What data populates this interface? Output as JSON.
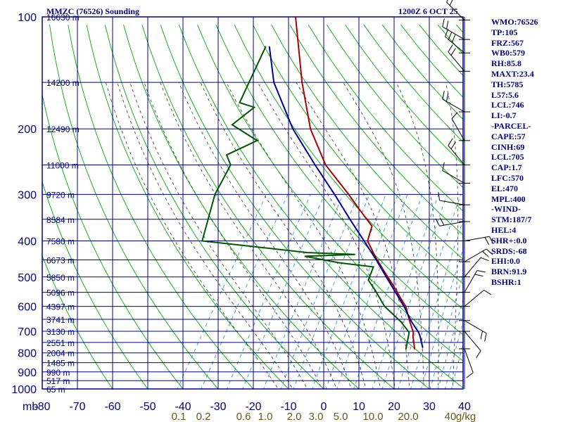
{
  "header": {
    "station": "MMZC (76526) Sounding",
    "time": "1200Z  6 OCT 25"
  },
  "stats": [
    "WMO:76526",
    "TP:105",
    "FRZ:567",
    "WB0:579",
    "RH:85.8",
    "MAXT:23.4",
    "TH:5785",
    "L57:5.6",
    "LCL:746",
    "LI:-0.7",
    "-PARCEL-",
    "CAPE:57",
    "CINH:69",
    "LCL:705",
    "CAP:1.7",
    "LFC:570",
    "EL:470",
    "MPL:400",
    "-WIND-",
    "STM:187/7",
    "HEL:4",
    "SHR+:0.0",
    "SRDS:-68",
    "EHI:0.0",
    "BRN:91.9",
    "BSHR:1"
  ],
  "colors": {
    "grid": "#000099",
    "dry_adiabat": "#00aa00",
    "moist_adiabat": "#333333",
    "mixing_ratio": "#2a9ad4",
    "temperature": "#aa0000",
    "parcel": "#000099",
    "dewpoint": "#005500",
    "axis_text": "#000080",
    "mixing_text": "#6b5a14"
  },
  "chart_data": {
    "type": "line",
    "chart_kind": "skew-T log-P sounding",
    "axis_mb_label": "mb",
    "pressure_axis": {
      "values": [
        100,
        200,
        300,
        400,
        500,
        600,
        700,
        800,
        900,
        1000
      ],
      "labels": [
        "100",
        "200",
        "300",
        "400",
        "500",
        "600",
        "700",
        "800",
        "900",
        "1000"
      ]
    },
    "temperature_axis": {
      "values": [
        -80,
        -70,
        -60,
        -50,
        -40,
        -30,
        -20,
        -10,
        0,
        10,
        20,
        30,
        40
      ],
      "labels": [
        "-80",
        "-70",
        "-60",
        "-50",
        "-40",
        "-30",
        "-20",
        "-10",
        "0",
        "10",
        "20",
        "30",
        "40"
      ]
    },
    "mixing_ratio_labels": [
      "0.1",
      "0.2",
      "0.6",
      "1.0",
      "2.0",
      "3.0",
      "5.0",
      "10.0",
      "20.0",
      "40",
      "g/kg"
    ],
    "height_labels": [
      {
        "p": 100,
        "text": "16630 m"
      },
      {
        "p": 150,
        "text": "14200 m"
      },
      {
        "p": 200,
        "text": "12490 m"
      },
      {
        "p": 250,
        "text": "11000 m"
      },
      {
        "p": 300,
        "text": "9720 m"
      },
      {
        "p": 350,
        "text": "8584 m"
      },
      {
        "p": 400,
        "text": "7580 m"
      },
      {
        "p": 450,
        "text": "6673 m"
      },
      {
        "p": 500,
        "text": "5850 m"
      },
      {
        "p": 550,
        "text": "5096 m"
      },
      {
        "p": 600,
        "text": "4397 m"
      },
      {
        "p": 650,
        "text": "3741 m"
      },
      {
        "p": 700,
        "text": "3130 m"
      },
      {
        "p": 750,
        "text": "2551 m"
      },
      {
        "p": 800,
        "text": "2004 m"
      },
      {
        "p": 850,
        "text": "1485 m"
      },
      {
        "p": 900,
        "text": "990 m"
      },
      {
        "p": 950,
        "text": "517 m"
      },
      {
        "p": 1000,
        "text": "65 m"
      }
    ],
    "series": [
      {
        "key": "temperature",
        "points": [
          [
            783,
            18.5
          ],
          [
            740,
            16.5
          ],
          [
            720,
            15.5
          ],
          [
            705,
            15.0
          ],
          [
            660,
            12.0
          ],
          [
            600,
            8.0
          ],
          [
            565,
            4.5
          ],
          [
            540,
            2.0
          ],
          [
            480,
            -5.0
          ],
          [
            440,
            -10.0
          ],
          [
            400,
            -15.0
          ],
          [
            365,
            -16.5
          ],
          [
            330,
            -23.0
          ],
          [
            300,
            -29.0
          ],
          [
            250,
            -41.0
          ],
          [
            200,
            -52.0
          ],
          [
            150,
            -63.0
          ],
          [
            100,
            -77.0
          ]
        ]
      },
      {
        "key": "parcel",
        "points": [
          [
            775,
            20.5
          ],
          [
            720,
            17.5
          ],
          [
            705,
            16.5
          ],
          [
            660,
            12.5
          ],
          [
            600,
            7.5
          ],
          [
            550,
            2.5
          ],
          [
            500,
            -3.0
          ],
          [
            450,
            -9.0
          ],
          [
            400,
            -16.0
          ],
          [
            350,
            -24.0
          ],
          [
            300,
            -33.0
          ],
          [
            250,
            -44.0
          ],
          [
            200,
            -57.0
          ],
          [
            150,
            -71.0
          ],
          [
            120,
            -79.0
          ]
        ]
      },
      {
        "key": "dewpoint",
        "points": [
          [
            783,
            16.0
          ],
          [
            705,
            13.8
          ],
          [
            660,
            9.5
          ],
          [
            600,
            2.0
          ],
          [
            540,
            -4.0
          ],
          [
            510,
            -7.5
          ],
          [
            470,
            -8.5
          ],
          [
            458,
            -19.0
          ],
          [
            440,
            -30.0
          ],
          [
            435,
            -16.0
          ],
          [
            430,
            -30.0
          ],
          [
            400,
            -62.0
          ],
          [
            300,
            -67.0
          ],
          [
            250,
            -68.0
          ],
          [
            235,
            -71.0
          ],
          [
            215,
            -65.0
          ],
          [
            195,
            -75.0
          ],
          [
            175,
            -72.0
          ],
          [
            170,
            -77.0
          ],
          [
            120,
            -80.0
          ]
        ]
      }
    ],
    "wind_barbs": [
      {
        "p": 102,
        "dir": 315,
        "spd": 15
      },
      {
        "p": 115,
        "dir": 300,
        "spd": 20
      },
      {
        "p": 125,
        "dir": 310,
        "spd": 25
      },
      {
        "p": 140,
        "dir": 320,
        "spd": 20
      },
      {
        "p": 180,
        "dir": 300,
        "spd": 15
      },
      {
        "p": 215,
        "dir": 330,
        "spd": 10
      },
      {
        "p": 250,
        "dir": 320,
        "spd": 15
      },
      {
        "p": 280,
        "dir": 300,
        "spd": 10
      },
      {
        "p": 320,
        "dir": 280,
        "spd": 10
      },
      {
        "p": 355,
        "dir": 260,
        "spd": 15
      },
      {
        "p": 400,
        "dir": 80,
        "spd": 20
      },
      {
        "p": 455,
        "dir": 60,
        "spd": 15
      },
      {
        "p": 500,
        "dir": 40,
        "spd": 10
      },
      {
        "p": 550,
        "dir": 30,
        "spd": 15
      },
      {
        "p": 600,
        "dir": 50,
        "spd": 10
      },
      {
        "p": 655,
        "dir": 120,
        "spd": 15
      },
      {
        "p": 700,
        "dir": 140,
        "spd": 10
      },
      {
        "p": 780,
        "dir": 160,
        "spd": 10
      }
    ]
  }
}
